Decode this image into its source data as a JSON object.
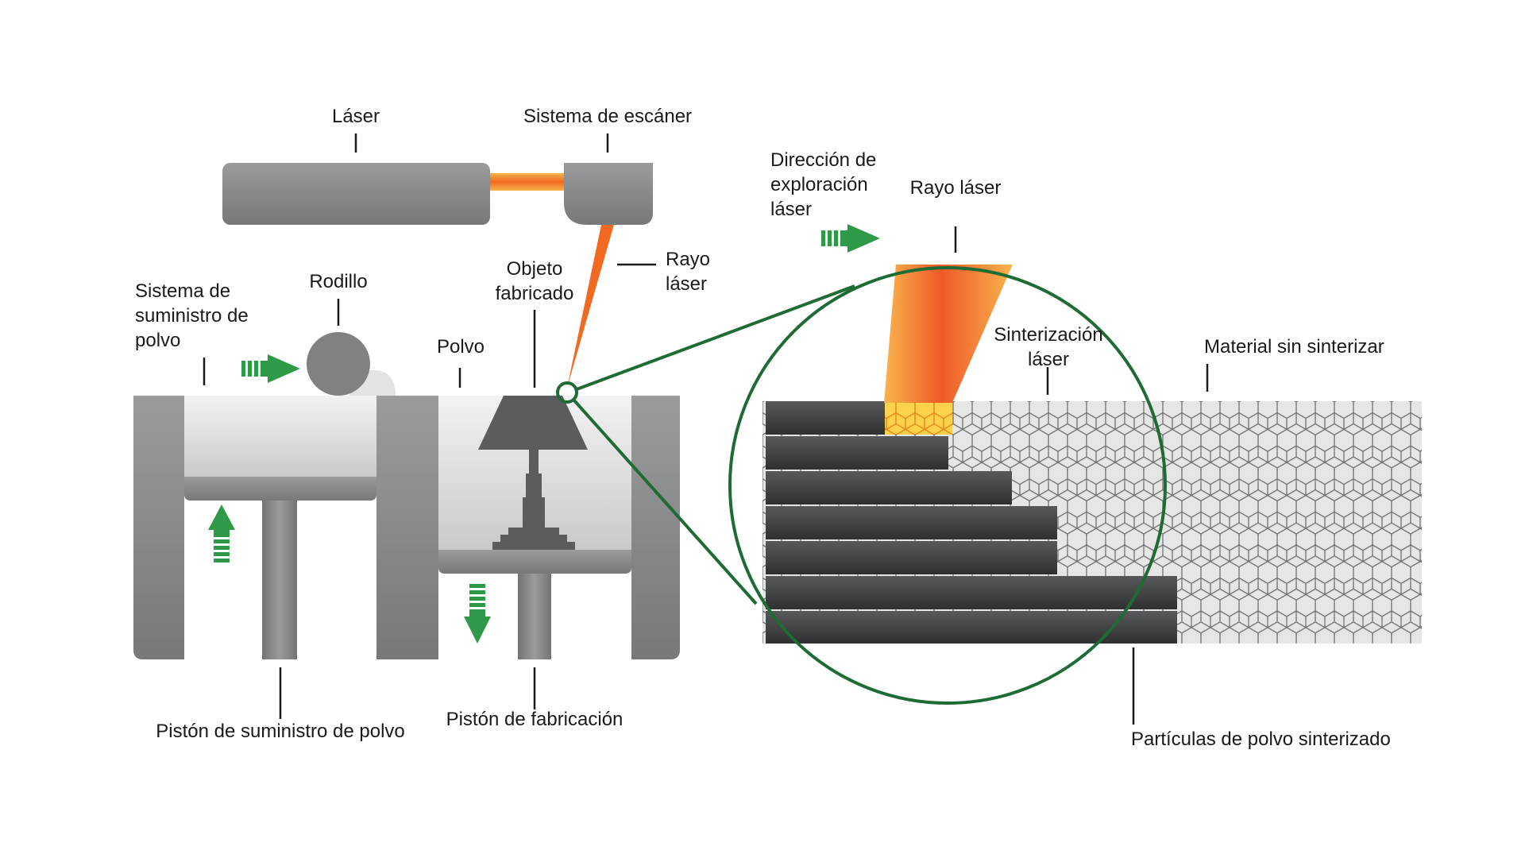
{
  "labels": {
    "laser": "Láser",
    "scanner": "Sistema de escáner",
    "roller": "Rodillo",
    "powder_supply_system": "Sistema de\nsuministro de\npolvo",
    "powder": "Polvo",
    "fabricated_object": "Objeto\nfabricado",
    "laser_beam_left": "Rayo\nláser",
    "supply_piston": "Pistón de suministro de polvo",
    "build_piston": "Pistón de fabricación",
    "scan_direction": "Dirección de\nexploración\nláser",
    "laser_beam_right": "Rayo láser",
    "laser_sintering": "Sinterización\nláser",
    "unsintered_material": "Material sin sinterizar",
    "sintered_particles": "Partículas de polvo sinterizado"
  },
  "colors": {
    "machine_gray": "#8a8b8d",
    "dark_layer": "#3b3c3e",
    "magnifier_green": "#1f6b35",
    "arrow_green": "#2e9a47",
    "beam_orange": "#f26a21",
    "beam_yellow": "#f7b24a",
    "sinter_yellow": "#fde26a"
  },
  "icons": {
    "roller_arrow": "right-arrow-icon",
    "supply_arrow": "up-arrow-icon",
    "build_arrow": "down-arrow-icon",
    "scan_arrow": "right-arrow-icon"
  }
}
